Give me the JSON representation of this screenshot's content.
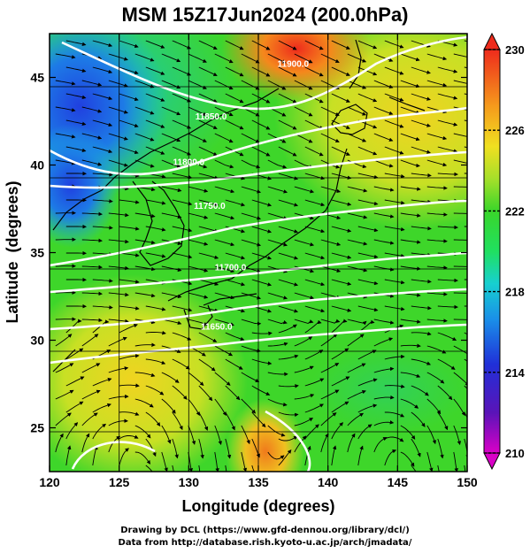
{
  "title": "MSM 15Z17Jun2024 (200.0hPa)",
  "chart_data": {
    "type": "heatmap",
    "x_axis": {
      "label": "Longitude (degrees)",
      "range": [
        120,
        150
      ],
      "ticks": [
        120,
        125,
        130,
        135,
        140,
        145,
        150
      ]
    },
    "y_axis": {
      "label": "Latitude  (degrees)",
      "range": [
        22.5,
        47.5
      ],
      "ticks": [
        25,
        30,
        35,
        40,
        45
      ]
    },
    "grid": true,
    "colorbar": {
      "range": [
        210,
        230
      ],
      "ticks": [
        210,
        214,
        218,
        222,
        226,
        230
      ],
      "position": "right",
      "colors": [
        "#d900c7",
        "#3a1fb8",
        "#1d5fe8",
        "#18bfe6",
        "#1ee07a",
        "#2bd82b",
        "#a6e02a",
        "#f0e020",
        "#f59a1c",
        "#ee2b1c"
      ]
    },
    "contour_labels": [
      {
        "text": "11900.0",
        "lon": 137.5,
        "lat": 45.6
      },
      {
        "text": "11850.0",
        "lon": 131.6,
        "lat": 42.6
      },
      {
        "text": "11800.0",
        "lon": 130.0,
        "lat": 40.0
      },
      {
        "text": "11750.0",
        "lon": 131.5,
        "lat": 37.5
      },
      {
        "text": "11700.0",
        "lon": 133.0,
        "lat": 34.0
      },
      {
        "text": "11650.0",
        "lon": 132.0,
        "lat": 30.6
      }
    ]
  },
  "credits": {
    "line1": "Drawing by DCL (https://www.gfd-dennou.org/library/dcl/)",
    "line2": "Data from http://database.rish.kyoto-u.ac.jp/arch/jmadata/"
  }
}
